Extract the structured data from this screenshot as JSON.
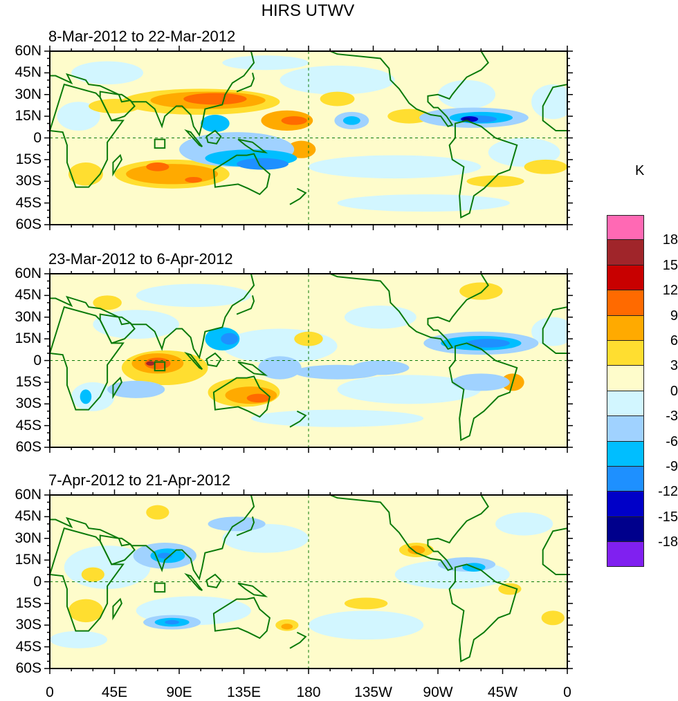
{
  "title": "HIRS UTWV",
  "panels": [
    {
      "title": "8-Mar-2012 to 22-Mar-2012"
    },
    {
      "title": "23-Mar-2012 to 6-Apr-2012"
    },
    {
      "title": "7-Apr-2012 to 21-Apr-2012"
    }
  ],
  "lat_labels": [
    "60N",
    "45N",
    "30N",
    "15N",
    "0",
    "15S",
    "30S",
    "45S",
    "60S"
  ],
  "lon_labels": [
    "0",
    "45E",
    "90E",
    "135E",
    "180",
    "135W",
    "90W",
    "45W",
    "0"
  ],
  "colorbar": {
    "unit": "K",
    "labels": [
      "18",
      "15",
      "12",
      "9",
      "6",
      "3",
      "0",
      "-3",
      "-6",
      "-9",
      "-12",
      "-15",
      "-18"
    ],
    "colors": [
      "#ff69b4",
      "#a0252a",
      "#c80000",
      "#ff6a00",
      "#ffaa00",
      "#ffde30",
      "#fefccb",
      "#d2f6ff",
      "#a0d2ff",
      "#00beff",
      "#1e90ff",
      "#0000c8",
      "#00008c",
      "#8020f0"
    ]
  },
  "coastline_color": "#0a7a0a"
}
